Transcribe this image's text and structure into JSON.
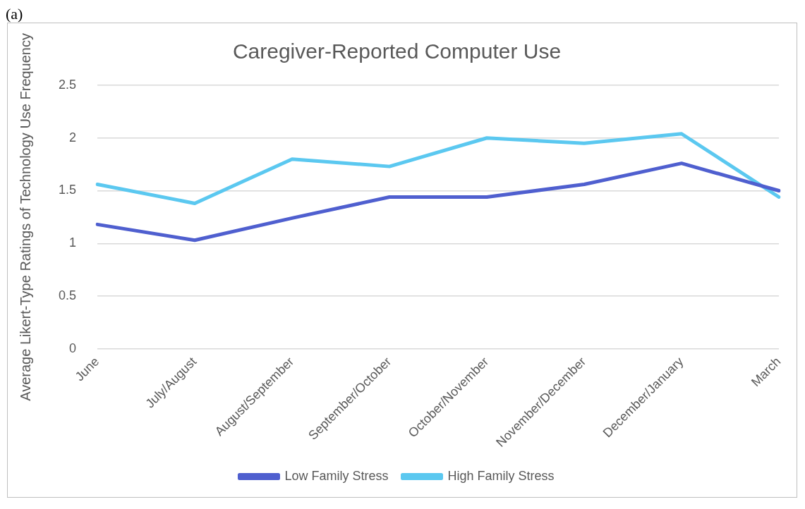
{
  "chart_data": {
    "type": "line",
    "title": "Caregiver-Reported Computer Use",
    "ylabel": "Average Likert-Type Ratings of Technology Use Frequency",
    "annotations": [
      "(a)"
    ],
    "categories": [
      "June",
      "July/August",
      "August/September",
      "September/October",
      "October/November",
      "November/December",
      "December/January",
      "March"
    ],
    "series": [
      {
        "name": "Low Family Stress",
        "color": "#4f5fcf",
        "values": [
          1.18,
          1.03,
          1.24,
          1.44,
          1.44,
          1.56,
          1.76,
          1.5
        ]
      },
      {
        "name": "High Family Stress",
        "color": "#5bc8f0",
        "values": [
          1.56,
          1.38,
          1.8,
          1.73,
          2.0,
          1.95,
          2.04,
          1.44
        ]
      }
    ],
    "ylim": [
      0,
      2.5
    ],
    "yticks": [
      0,
      0.5,
      1,
      1.5,
      2,
      2.5
    ],
    "grid": "y",
    "legend": "bottom",
    "marker": "none",
    "line_style": "solid"
  }
}
